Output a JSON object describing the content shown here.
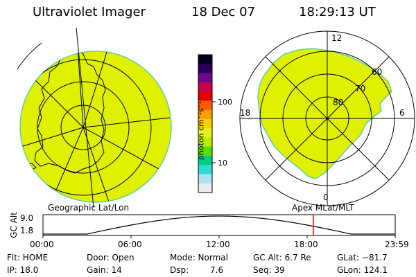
{
  "header": {
    "instrument": "Ultraviolet Imager",
    "date": "18 Dec 07",
    "time": "18:29:13 UT"
  },
  "colorbar": {
    "unit_label": "photon cm⁻²s⁻¹",
    "ticks": [
      "100",
      "10"
    ],
    "colors": [
      "#000020",
      "#2a0055",
      "#6a0a8a",
      "#c80050",
      "#e00000",
      "#ff5a00",
      "#ff9c00",
      "#ffd000",
      "#e8f020",
      "#b4f000",
      "#56e000",
      "#00d080",
      "#30d8d8",
      "#a8e4f0",
      "#e8ecf0"
    ]
  },
  "left_panel": {
    "caption": "Geographic Lat/Lon",
    "fill_color": "#dff000"
  },
  "right_panel": {
    "caption": "Apex MLat/MLT",
    "mlt_labels": {
      "top": "12",
      "bottom": "0",
      "left": "18",
      "right": "6"
    },
    "lat_labels": [
      "60",
      "70",
      "80"
    ],
    "fill_color": "#dff000"
  },
  "timeline": {
    "axis_label": "GC Alt",
    "y_labels": [
      "9.0",
      "1.8"
    ],
    "x_labels": [
      "00:00",
      "06:00",
      "12:00",
      "18:00",
      "23:59"
    ],
    "marker_time": "18:29",
    "marker_color": "#ff0000"
  },
  "footer": {
    "row1": {
      "flt": "Flt: HOME",
      "door": "Door: Open",
      "mode": "Mode: Normal",
      "gc_alt": "GC Alt: 6.7 Re",
      "glat": "GLat: −81.7"
    },
    "row2": {
      "ip": "IP: 18.0",
      "gain": "Gain: 14",
      "dsp_label": "Dsp:",
      "dsp_value": "7.6",
      "seq": "Seq: 39",
      "glon": "GLon: 124.1"
    }
  }
}
